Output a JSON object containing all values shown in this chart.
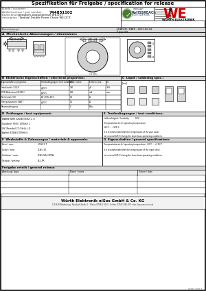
{
  "title": "Spezifikation für Freigabe / specification for release",
  "part_number": "744851102",
  "customer_label": "Kunde / customer :",
  "partnumber_label": "Artikelnummer / part number :",
  "bezeichnung_label": "Bezeichnung /",
  "bezeichnung_label2": "description :",
  "bezeichnung_value1": "Eingkern-Doppeldrossel WE-DCT",
  "bezeichnung_value2": "Toroidal Double Power Choke WE-DCT",
  "datum_label": "DATUM / DATE : 2011-02-24",
  "type_label": "Type SH",
  "section_a": "A  Mechanische Abmessungen / dimensions:",
  "section_b": "B  Elektrische Eigenschaften / electrical properties:",
  "section_c": "C  Löpot / soldering spec.:",
  "section_d": "D  Prüfungen / test equipment:",
  "section_e": "E  Testbedingungen / test conditions:",
  "section_f": "F  Werkstoffe & Zulassungen / materials & approvals:",
  "section_g": "G  Eigenschaften / general specifications:",
  "footer_company": "Würth Elektronik eiSos GmbH & Co. KG",
  "footer_address": "D-74638 Waldenburg · Max-Eyth-Straße 1 · Telefon (07942) 945-0 · Telefax (07942) 945-400 · http://www.we-online.de",
  "page_label": "SEITE / SITE 1",
  "we_red": "#cc0000",
  "rohs_green": "#4a7c2f",
  "rohs_blue": "#1a3a6b",
  "bg": "#ffffff",
  "section_bg": "#d8d8d8",
  "table_header_bg": "#eeeeee",
  "gray_line": "#888888",
  "b_props": [
    "Eigenschaften / properties",
    "Testbedingungen / test conditions",
    "Wert / value",
    "Einheit / unit",
    "tol."
  ],
  "b_col_widths": [
    58,
    42,
    28,
    25,
    22
  ],
  "b_rows": [
    [
      "Induktivität (L1/L2)",
      "@25°C",
      "290",
      "μH",
      "±5%"
    ],
    [
      "DCR Widerstand (R1/R2)",
      "@25°C",
      "290",
      "mΩ",
      "max"
    ],
    [
      "Nennstrom (IR)",
      "ΔT=50K, 40°C",
      "1.9",
      "A",
      ""
    ],
    [
      "Sättigungsstrom (ISAT)",
      "@25°C",
      "1.5",
      "A",
      ""
    ],
    [
      "Resonanzfrequenz",
      "",
      "5",
      "MHz",
      ""
    ]
  ],
  "d_rows": [
    "WAYNE KERR 3260B (5kHz) L, Q",
    "Quadtech 7600 (100kHz) L",
    "LRC Metrabel 27 (5kHz) L,Q",
    "Agilent 4284A (100kHz) L"
  ],
  "e_rows": [
    "Luftfeuchtigkeit / humidity:          65%",
    "Temperaturbereich / operating temperature:",
    "-40°C ... +125°C",
    "It is recommended that the temperature of the part value",
    "not exceed 125°C during the lower base operating conditions."
  ],
  "f_rows": [
    [
      "Kern / core:",
      "LF/NI 3.7"
    ],
    [
      "Draht / wire:",
      "LCW-155"
    ],
    [
      "Gehäuse / case:",
      "LCW-UL94-5PVA"
    ],
    [
      "Verguss / potting:",
      "FILL-FR"
    ]
  ],
  "g_rows": [
    "Temperaturbereich / operating temperature: -40°C ... +125°C",
    "It is recommended that the temperature of the input value",
    "not exceed 125°C during the lower base operating conditions."
  ],
  "release_headers": [
    "Abteilung / dept.",
    "Name / name",
    "Datum / date"
  ],
  "release_rows": [
    [
      "",
      "",
      ""
    ],
    [
      "",
      "",
      ""
    ],
    [
      "",
      "",
      ""
    ]
  ]
}
